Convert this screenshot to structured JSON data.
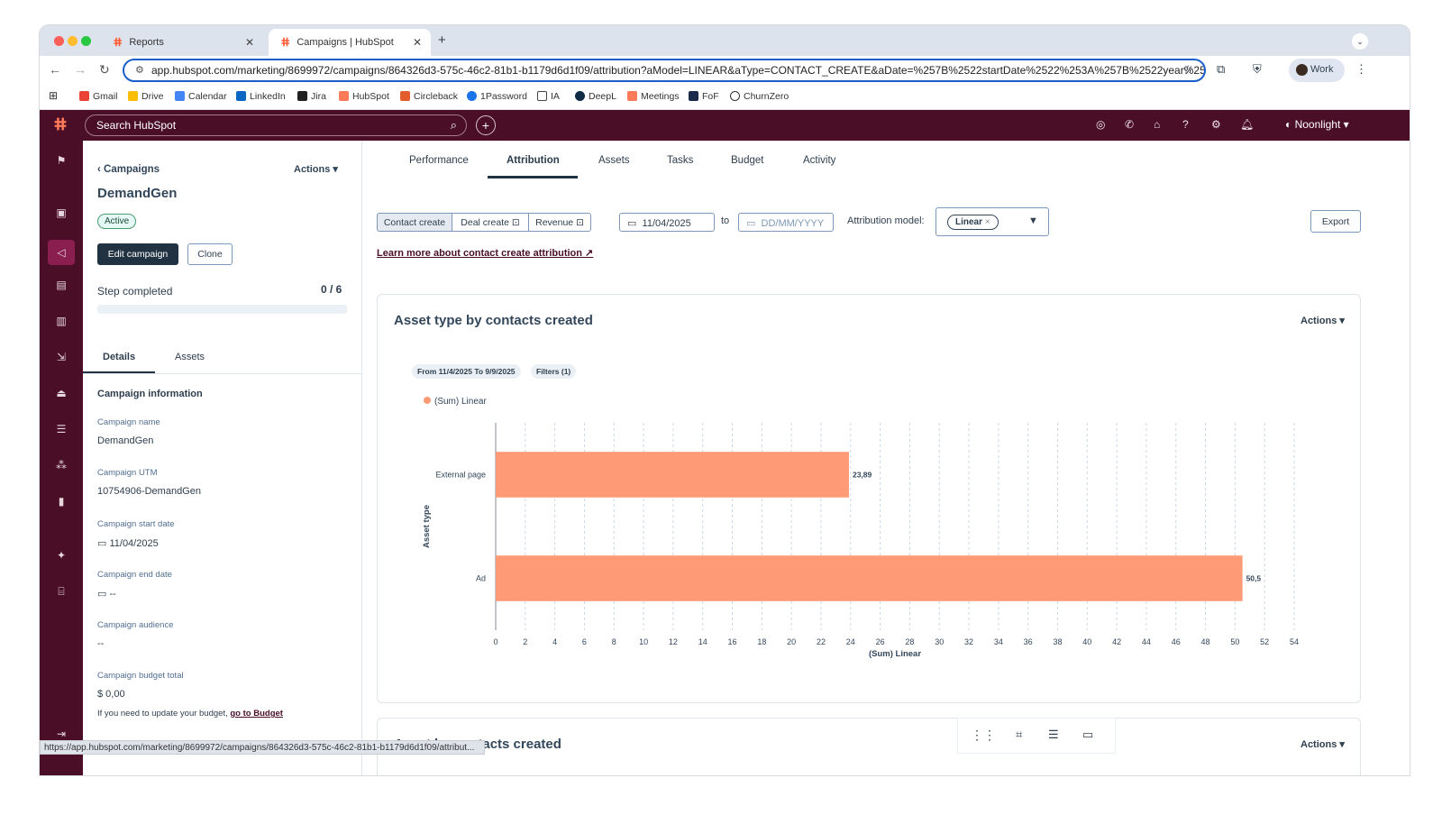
{
  "browser": {
    "tabs": [
      {
        "label": "Reports"
      },
      {
        "label": "Campaigns | HubSpot"
      }
    ],
    "url": "app.hubspot.com/marketing/8699972/campaigns/864326d3-575c-46c2-81b1-b1179d6d1f09/attribution?aModel=LINEAR&aType=CONTACT_CREATE&aDate=%257B%2522startDate%2522%253A%257B%2522year%252...",
    "profile": "Work",
    "bookmarks": [
      "Gmail",
      "Drive",
      "Calendar",
      "LinkedIn",
      "Jira",
      "HubSpot",
      "Circleback",
      "1Password",
      "IA",
      "DeepL",
      "Meetings",
      "FoF",
      "ChurnZero"
    ],
    "status_url": "https://app.hubspot.com/marketing/8699972/campaigns/864326d3-575c-46c2-81b1-b1179d6d1f09/attribut..."
  },
  "hubspot": {
    "search_placeholder": "Search HubSpot",
    "account": "Noonlight"
  },
  "left": {
    "breadcrumb": "Campaigns",
    "actions": "Actions",
    "title": "DemandGen",
    "status": "Active",
    "edit": "Edit campaign",
    "clone": "Clone",
    "step_label": "Step completed",
    "step_value": "0 / 6",
    "tabs": [
      "Details",
      "Assets"
    ],
    "section": "Campaign information",
    "fields": [
      {
        "label": "Campaign name",
        "value": "DemandGen"
      },
      {
        "label": "Campaign UTM",
        "value": "10754906-DemandGen"
      },
      {
        "label": "Campaign start date",
        "value": "11/04/2025"
      },
      {
        "label": "Campaign end date",
        "value": "--"
      },
      {
        "label": "Campaign audience",
        "value": "--"
      },
      {
        "label": "Campaign budget total",
        "value": "$ 0,00"
      }
    ],
    "budget_note": "If you need to update your budget,",
    "budget_link": "go to Budget"
  },
  "main": {
    "tabs": [
      "Performance",
      "Attribution",
      "Assets",
      "Tasks",
      "Budget",
      "Activity"
    ],
    "segments": [
      "Contact create",
      "Deal create",
      "Revenue"
    ],
    "start_date": "11/04/2025",
    "to": "to",
    "end_placeholder": "DD/MM/YYYY",
    "model_label": "Attribution model:",
    "model_value": "Linear",
    "export": "Export",
    "learn_more": "Learn more about contact create attribution",
    "card_title": "Asset type by contacts created",
    "card_actions": "Actions",
    "filter_range": "From 11/4/2025 To 9/9/2025",
    "filter_count": "Filters (1)",
    "card2_title": "Asset by contacts created",
    "card2_actions": "Actions"
  },
  "chart_data": {
    "type": "bar",
    "orientation": "horizontal",
    "categories": [
      "External page",
      "Ad"
    ],
    "series": [
      {
        "name": "(Sum) Linear",
        "values": [
          23.89,
          50.5
        ],
        "color": "#ff9a76"
      }
    ],
    "value_labels": [
      "23,89",
      "50,5"
    ],
    "xlabel": "(Sum) Linear",
    "ylabel": "Asset type",
    "xlim": [
      0,
      54
    ],
    "xticks": [
      0,
      2,
      4,
      6,
      8,
      10,
      12,
      14,
      16,
      18,
      20,
      22,
      24,
      26,
      28,
      30,
      32,
      34,
      36,
      38,
      40,
      42,
      44,
      46,
      48,
      50,
      52,
      54
    ],
    "grid": true,
    "legend": "top-left"
  }
}
